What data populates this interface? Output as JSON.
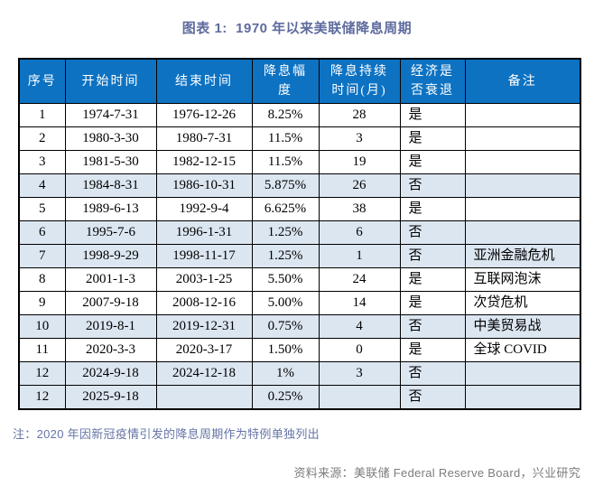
{
  "figure": {
    "title": "图表 1:  1970 年以来美联储降息周期",
    "note": "注：2020 年因新冠疫情引发的降息周期作为特例单独列出",
    "source": "资料来源：美联储 Federal Reserve Board，兴业研究"
  },
  "chart_data": {
    "type": "table",
    "title": "图表 1: 1970 年以来美联储降息周期",
    "column_names": [
      "序号",
      "开始时间",
      "结束时间",
      "降息幅度",
      "降息持续时间(月)",
      "经济是否衰退",
      "备注"
    ],
    "column_display": [
      "序号",
      "开始时间",
      "结束时间",
      "降息幅\n度",
      "降息持续\n时间(月)",
      "经济是\n否衰退",
      "备注"
    ],
    "rows": [
      {
        "seq": "1",
        "start": "1974-7-31",
        "end": "1976-12-26",
        "cut": "8.25%",
        "months": "28",
        "recession": "是",
        "remark": "",
        "shaded": false
      },
      {
        "seq": "2",
        "start": "1980-3-30",
        "end": "1980-7-31",
        "cut": "11.5%",
        "months": "3",
        "recession": "是",
        "remark": "",
        "shaded": false
      },
      {
        "seq": "3",
        "start": "1981-5-30",
        "end": "1982-12-15",
        "cut": "11.5%",
        "months": "19",
        "recession": "是",
        "remark": "",
        "shaded": false
      },
      {
        "seq": "4",
        "start": "1984-8-31",
        "end": "1986-10-31",
        "cut": "5.875%",
        "months": "26",
        "recession": "否",
        "remark": "",
        "shaded": true
      },
      {
        "seq": "5",
        "start": "1989-6-13",
        "end": "1992-9-4",
        "cut": "6.625%",
        "months": "38",
        "recession": "是",
        "remark": "",
        "shaded": false
      },
      {
        "seq": "6",
        "start": "1995-7-6",
        "end": "1996-1-31",
        "cut": "1.25%",
        "months": "6",
        "recession": "否",
        "remark": "",
        "shaded": true
      },
      {
        "seq": "7",
        "start": "1998-9-29",
        "end": "1998-11-17",
        "cut": "1.25%",
        "months": "1",
        "recession": "否",
        "remark": "亚洲金融危机",
        "shaded": true
      },
      {
        "seq": "8",
        "start": "2001-1-3",
        "end": "2003-1-25",
        "cut": "5.50%",
        "months": "24",
        "recession": "是",
        "remark": "互联网泡沫",
        "shaded": false
      },
      {
        "seq": "9",
        "start": "2007-9-18",
        "end": "2008-12-16",
        "cut": "5.00%",
        "months": "14",
        "recession": "是",
        "remark": "次贷危机",
        "shaded": false
      },
      {
        "seq": "10",
        "start": "2019-8-1",
        "end": "2019-12-31",
        "cut": "0.75%",
        "months": "4",
        "recession": "否",
        "remark": "中美贸易战",
        "shaded": true
      },
      {
        "seq": "11",
        "start": "2020-3-3",
        "end": "2020-3-17",
        "cut": "1.50%",
        "months": "0",
        "recession": "是",
        "remark": "全球 COVID",
        "shaded": false
      },
      {
        "seq": "12",
        "start": "2024-9-18",
        "end": "2024-12-18",
        "cut": "1%",
        "months": "3",
        "recession": "否",
        "remark": "",
        "shaded": true
      },
      {
        "seq": "12",
        "start": "2025-9-18",
        "end": "",
        "cut": "0.25%",
        "months": "",
        "recession": "否",
        "remark": "",
        "shaded": true
      }
    ]
  },
  "colors": {
    "header_bg": "#0D72C2",
    "header_text": "#FFFFFF",
    "shaded_row_bg": "#DCE6F1",
    "title_text": "#5E6B9D",
    "note_text": "#6674A6",
    "source_text": "#7C7C7C",
    "border": "#000000"
  }
}
